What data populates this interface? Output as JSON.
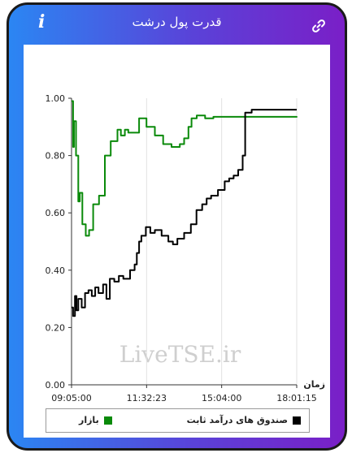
{
  "header": {
    "title": "قدرت پول درشت"
  },
  "icons": {
    "info": "info-icon",
    "link": "link-icon"
  },
  "colors": {
    "market": "#0a8a0a",
    "fixed_income": "#000000"
  },
  "chart_data": {
    "type": "line",
    "title": "",
    "xlabel": "زمان",
    "ylabel": "",
    "ylim": [
      0,
      1
    ],
    "yticks": [
      "0.00",
      "0.20",
      "0.40",
      "0.60",
      "0.80",
      "1.00"
    ],
    "xticks": [
      "09:05:00",
      "11:32:23",
      "15:04:00",
      "18:01:15"
    ],
    "watermark": "LiveTSE.ir",
    "grid": true,
    "legend_position": "bottom",
    "series": [
      {
        "name": "بازار",
        "color": "#0a8a0a",
        "x": [
          0,
          0.007,
          0.011,
          0.02,
          0.03,
          0.037,
          0.048,
          0.063,
          0.078,
          0.096,
          0.122,
          0.141,
          0.148,
          0.174,
          0.204,
          0.219,
          0.237,
          0.252,
          0.3,
          0.333,
          0.37,
          0.407,
          0.444,
          0.481,
          0.5,
          0.519,
          0.533,
          0.556,
          0.593,
          0.63,
          0.7,
          0.8,
          0.9,
          1.0
        ],
        "y": [
          0.99,
          0.83,
          0.92,
          0.8,
          0.64,
          0.67,
          0.56,
          0.52,
          0.54,
          0.63,
          0.66,
          0.66,
          0.8,
          0.85,
          0.89,
          0.87,
          0.89,
          0.88,
          0.93,
          0.9,
          0.87,
          0.84,
          0.83,
          0.84,
          0.86,
          0.9,
          0.93,
          0.94,
          0.93,
          0.935,
          0.935,
          0.935,
          0.935,
          0.937
        ]
      },
      {
        "name": "صندوق های درآمد ثابت",
        "color": "#000000",
        "x": [
          0,
          0.007,
          0.015,
          0.022,
          0.03,
          0.045,
          0.06,
          0.075,
          0.09,
          0.105,
          0.12,
          0.14,
          0.155,
          0.17,
          0.19,
          0.21,
          0.23,
          0.26,
          0.28,
          0.29,
          0.3,
          0.31,
          0.33,
          0.35,
          0.37,
          0.4,
          0.43,
          0.45,
          0.47,
          0.5,
          0.53,
          0.555,
          0.58,
          0.6,
          0.62,
          0.65,
          0.68,
          0.7,
          0.72,
          0.74,
          0.76,
          0.771,
          0.8,
          0.85,
          0.9,
          1.0
        ],
        "y": [
          0.27,
          0.24,
          0.31,
          0.26,
          0.3,
          0.27,
          0.32,
          0.33,
          0.31,
          0.34,
          0.32,
          0.35,
          0.3,
          0.37,
          0.36,
          0.38,
          0.37,
          0.4,
          0.42,
          0.46,
          0.5,
          0.52,
          0.55,
          0.53,
          0.54,
          0.52,
          0.5,
          0.49,
          0.51,
          0.53,
          0.56,
          0.61,
          0.63,
          0.65,
          0.66,
          0.68,
          0.71,
          0.72,
          0.73,
          0.75,
          0.8,
          0.95,
          0.96,
          0.96,
          0.96,
          0.96
        ]
      }
    ]
  },
  "legend": {
    "market_label": "بازار",
    "fixed_label": "صندوق های درآمد ثابت"
  }
}
